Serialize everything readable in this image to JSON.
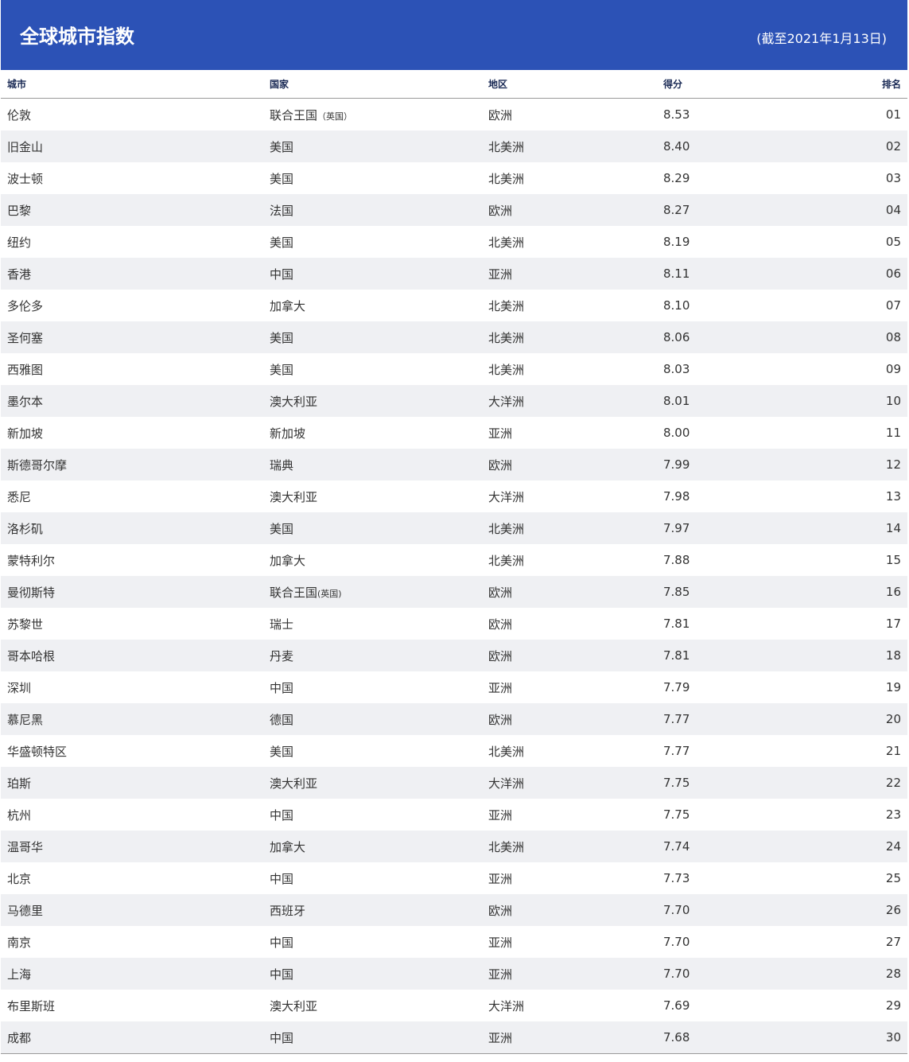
{
  "header": {
    "title": "全球城市指数",
    "date": "(截至2021年1月13日)"
  },
  "columns": [
    "城市",
    "国家",
    "地区",
    "得分",
    "排名"
  ],
  "rows": [
    [
      "伦敦",
      "联合王国（英国）",
      "欧洲",
      "8.53",
      "01"
    ],
    [
      "旧金山",
      "美国",
      "北美洲",
      "8.40",
      "02"
    ],
    [
      "波士顿",
      "美国",
      "北美洲",
      "8.29",
      "03"
    ],
    [
      "巴黎",
      "法国",
      "欧洲",
      "8.27",
      "04"
    ],
    [
      "纽约",
      "美国",
      "北美洲",
      "8.19",
      "05"
    ],
    [
      "香港",
      "中国",
      "亚洲",
      "8.11",
      "06"
    ],
    [
      "多伦多",
      "加拿大",
      "北美洲",
      "8.10",
      "07"
    ],
    [
      "圣何塞",
      "美国",
      "北美洲",
      "8.06",
      "08"
    ],
    [
      "西雅图",
      "美国",
      "北美洲",
      "8.03",
      "09"
    ],
    [
      "墨尔本",
      "澳大利亚",
      "大洋洲",
      "8.01",
      "10"
    ],
    [
      "新加坡",
      "新加坡",
      "亚洲",
      "8.00",
      "11"
    ],
    [
      "斯德哥尔摩",
      "瑞典",
      "欧洲",
      "7.99",
      "12"
    ],
    [
      "悉尼",
      "澳大利亚",
      "大洋洲",
      "7.98",
      "13"
    ],
    [
      "洛杉矶",
      "美国",
      "北美洲",
      "7.97",
      "14"
    ],
    [
      "蒙特利尔",
      "加拿大",
      "北美洲",
      "7.88",
      "15"
    ],
    [
      "曼彻斯特",
      "联合王国(英国)",
      "欧洲",
      "7.85",
      "16"
    ],
    [
      "苏黎世",
      "瑞士",
      "欧洲",
      "7.81",
      "17"
    ],
    [
      "哥本哈根",
      "丹麦",
      "欧洲",
      "7.81",
      "18"
    ],
    [
      "深圳",
      "中国",
      "亚洲",
      "7.79",
      "19"
    ],
    [
      "慕尼黑",
      "德国",
      "欧洲",
      "7.77",
      "20"
    ],
    [
      "华盛顿特区",
      "美国",
      "北美洲",
      "7.77",
      "21"
    ],
    [
      "珀斯",
      "澳大利亚",
      "大洋洲",
      "7.75",
      "22"
    ],
    [
      "杭州",
      "中国",
      "亚洲",
      "7.75",
      "23"
    ],
    [
      "温哥华",
      "加拿大",
      "北美洲",
      "7.74",
      "24"
    ],
    [
      "北京",
      "中国",
      "亚洲",
      "7.73",
      "25"
    ],
    [
      "马德里",
      "西班牙",
      "欧洲",
      "7.70",
      "26"
    ],
    [
      "南京",
      "中国",
      "亚洲",
      "7.70",
      "27"
    ],
    [
      "上海",
      "中国",
      "亚洲",
      "7.70",
      "28"
    ],
    [
      "布里斯班",
      "澳大利亚",
      "大洋洲",
      "7.69",
      "29"
    ],
    [
      "成都",
      "中国",
      "亚洲",
      "7.68",
      "30"
    ]
  ]
}
